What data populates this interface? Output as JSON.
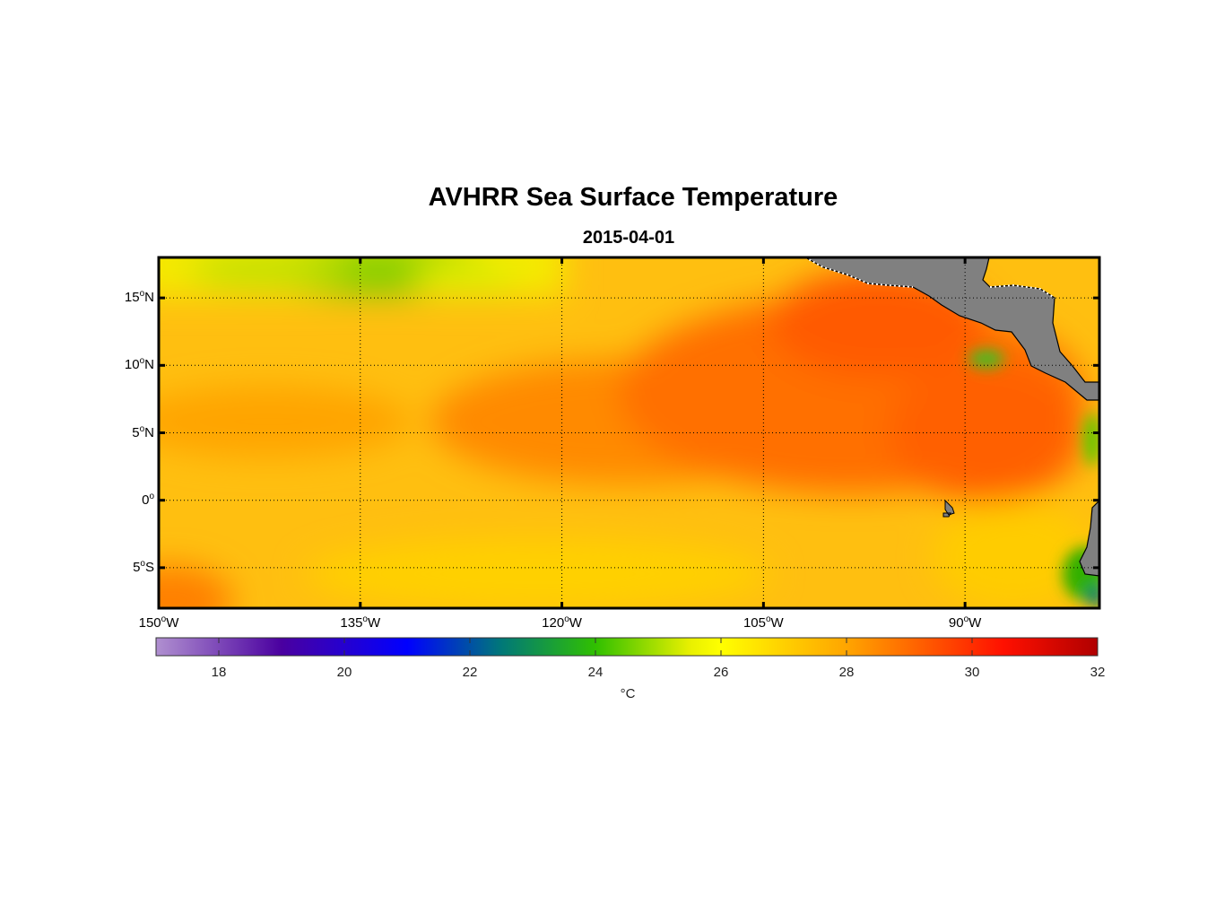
{
  "title": "AVHRR Sea Surface Temperature",
  "subtitle": "2015-04-01",
  "map": {
    "lon_range": [
      -150,
      -80
    ],
    "lat_range": [
      -8,
      18
    ],
    "lat_ticks": [
      {
        "value": 15,
        "num": "15",
        "hemi": "N"
      },
      {
        "value": 10,
        "num": "10",
        "hemi": "N"
      },
      {
        "value": 5,
        "num": "5",
        "hemi": "N"
      },
      {
        "value": 0,
        "num": "0",
        "hemi": ""
      },
      {
        "value": -5,
        "num": "5",
        "hemi": "S"
      }
    ],
    "lon_ticks": [
      {
        "value": -150,
        "num": "150",
        "hemi": "W"
      },
      {
        "value": -135,
        "num": "135",
        "hemi": "W"
      },
      {
        "value": -120,
        "num": "120",
        "hemi": "W"
      },
      {
        "value": -105,
        "num": "105",
        "hemi": "W"
      },
      {
        "value": -90,
        "num": "90",
        "hemi": "W"
      }
    ],
    "degree_symbol": "o",
    "land_color": "#808080",
    "grid_style": "dotted"
  },
  "colorbar": {
    "min": 17,
    "max": 32,
    "ticks": [
      18,
      20,
      22,
      24,
      26,
      28,
      30,
      32
    ],
    "unit": "°C",
    "stops": [
      {
        "t": 17,
        "color": "#b090d0"
      },
      {
        "t": 19,
        "color": "#4a00a0"
      },
      {
        "t": 21,
        "color": "#0000ff"
      },
      {
        "t": 22.5,
        "color": "#007878"
      },
      {
        "t": 24,
        "color": "#30c000"
      },
      {
        "t": 25.5,
        "color": "#e8f000"
      },
      {
        "t": 26,
        "color": "#ffff00"
      },
      {
        "t": 27,
        "color": "#ffd000"
      },
      {
        "t": 28,
        "color": "#ffa500"
      },
      {
        "t": 29,
        "color": "#ff6a00"
      },
      {
        "t": 30.5,
        "color": "#ff1000"
      },
      {
        "t": 32,
        "color": "#b00000"
      }
    ]
  }
}
